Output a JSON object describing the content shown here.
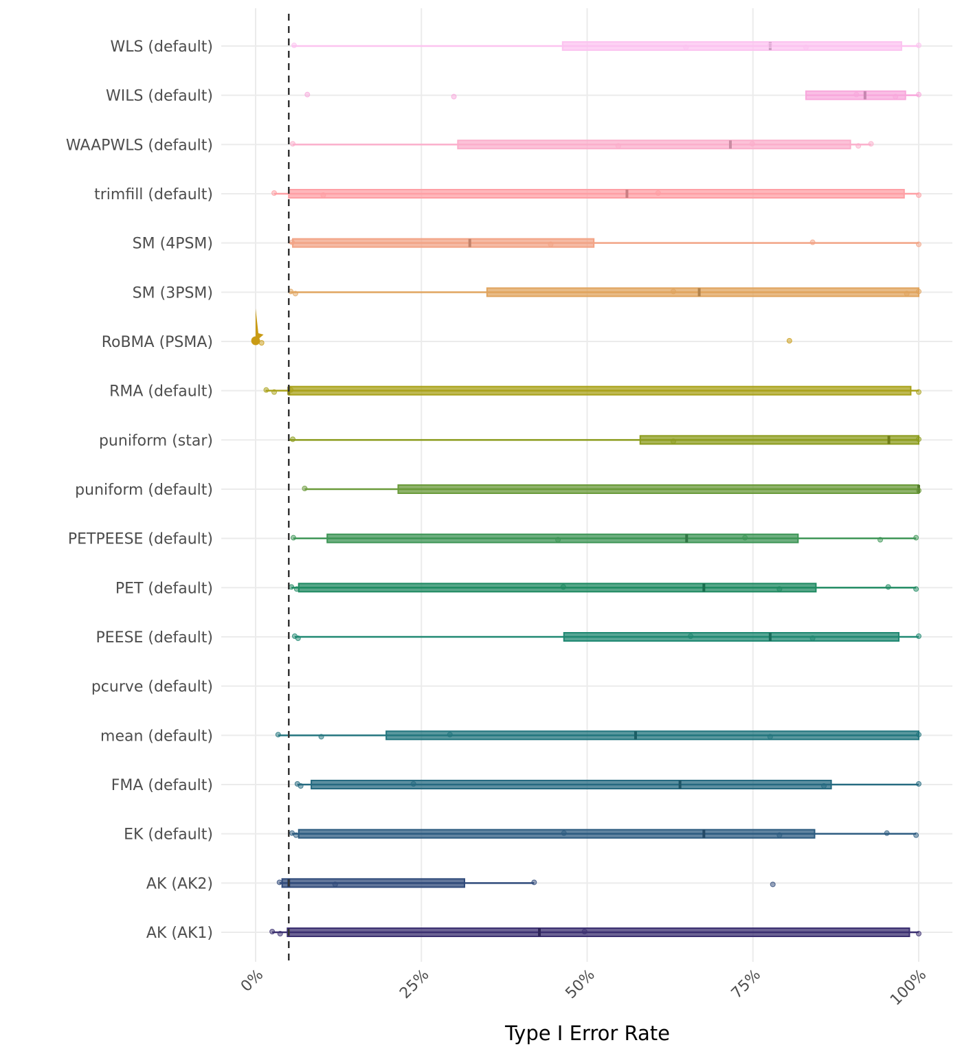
{
  "chart_data": {
    "type": "boxplot-interval",
    "title": "",
    "xlabel": "Type I Error Rate",
    "ylabel": "",
    "xlim": [
      0,
      100
    ],
    "x_ticks": [
      "0%",
      "25%",
      "50%",
      "75%",
      "100%"
    ],
    "x_tick_values": [
      0,
      25,
      50,
      75,
      100
    ],
    "reference_line": {
      "x": 5,
      "style": "dashed",
      "color": "#333333"
    },
    "grid": true,
    "legend": "none",
    "series": [
      {
        "name": "WLS (default)",
        "color": "#fcc3f0",
        "min": 5.5,
        "q1": 46.3,
        "median": 77.6,
        "q3": 97.4,
        "max": 100,
        "points": [
          5.8,
          64.9,
          77.6,
          83,
          100
        ]
      },
      {
        "name": "WILS (default)",
        "color": "#f8a8dc",
        "min": 83,
        "q1": 83,
        "median": 91.9,
        "q3": 98,
        "max": 100,
        "points": [
          7.8,
          29.9,
          90.6,
          96.5,
          100
        ]
      },
      {
        "name": "WAAPWLS (default)",
        "color": "#fbaecb",
        "min": 5.6,
        "q1": 30.5,
        "median": 71.6,
        "q3": 89.7,
        "max": 92.8,
        "points": [
          5.6,
          54.7,
          74.9,
          90.9,
          92.8
        ]
      },
      {
        "name": "trimfill (default)",
        "color": "#fe9fa4",
        "min": 2.8,
        "q1": 5,
        "median": 56,
        "q3": 97.8,
        "max": 100,
        "points": [
          2.8,
          10.2,
          60.7,
          100
        ]
      },
      {
        "name": "SM (4PSM)",
        "color": "#f2a385",
        "min": 5,
        "q1": 5.6,
        "median": 32.3,
        "q3": 51,
        "max": 100,
        "points": [
          5.5,
          44.5,
          84,
          100
        ]
      },
      {
        "name": "SM (3PSM)",
        "color": "#e0a45e",
        "min": 5.2,
        "q1": 34.9,
        "median": 66.9,
        "q3": 100,
        "max": 100,
        "points": [
          5.3,
          6,
          63,
          98.2,
          100
        ]
      },
      {
        "name": "RoBMA (PSMA)",
        "color": "#c99b14",
        "min": null,
        "q1": null,
        "median": null,
        "q3": null,
        "max": null,
        "points": [
          0,
          0.9,
          80.5
        ]
      },
      {
        "name": "RMA (default)",
        "color": "#a9a11a",
        "min": 1.5,
        "q1": 5,
        "median": 5,
        "q3": 98.8,
        "max": 100,
        "points": [
          1.6,
          2.8,
          5.3,
          100
        ]
      },
      {
        "name": "puniform (star)",
        "color": "#8c9c1e",
        "min": 5,
        "q1": 58,
        "median": 95.5,
        "q3": 100,
        "max": 100,
        "points": [
          5.6,
          63,
          100
        ]
      },
      {
        "name": "puniform (default)",
        "color": "#6a9a3a",
        "min": 7.4,
        "q1": 21.5,
        "median": 100,
        "q3": 100,
        "max": 100,
        "points": [
          7.4,
          100
        ]
      },
      {
        "name": "PETPEESE (default)",
        "color": "#3d9556",
        "min": 5.7,
        "q1": 10.8,
        "median": 65,
        "q3": 81.8,
        "max": 99.6,
        "points": [
          5.7,
          45.6,
          73.8,
          94.2,
          99.6
        ]
      },
      {
        "name": "PET (default)",
        "color": "#1f8a62",
        "min": 5.4,
        "q1": 6.5,
        "median": 67.6,
        "q3": 84.5,
        "max": 99.6,
        "points": [
          5.4,
          6.2,
          46.4,
          79,
          95.4,
          99.6
        ]
      },
      {
        "name": "PEESE (default)",
        "color": "#1f8872",
        "min": 5.9,
        "q1": 46.5,
        "median": 77.6,
        "q3": 97,
        "max": 100,
        "points": [
          5.9,
          6.4,
          65.6,
          84,
          100
        ]
      },
      {
        "name": "pcurve (default)",
        "color": "#1f8080",
        "min": null,
        "q1": null,
        "median": null,
        "q3": null,
        "max": null,
        "points": []
      },
      {
        "name": "mean (default)",
        "color": "#23757e",
        "min": 3.4,
        "q1": 19.7,
        "median": 57.3,
        "q3": 100,
        "max": 100,
        "points": [
          3.4,
          9.9,
          29.3,
          77.6,
          100
        ]
      },
      {
        "name": "FMA (default)",
        "color": "#266a80",
        "min": 6.3,
        "q1": 8.4,
        "median": 64,
        "q3": 86.8,
        "max": 100,
        "points": [
          6.3,
          6.8,
          23.8,
          85.7,
          100
        ]
      },
      {
        "name": "EK (default)",
        "color": "#2c5b80",
        "min": 5.5,
        "q1": 6.5,
        "median": 67.6,
        "q3": 84.3,
        "max": 99.6,
        "points": [
          5.5,
          6.1,
          46.5,
          79,
          95.2,
          99.6
        ]
      },
      {
        "name": "AK (AK2)",
        "color": "#2f4a7a",
        "min": 3.6,
        "q1": 4,
        "median": 5,
        "q3": 31.5,
        "max": 42,
        "points": [
          3.6,
          12,
          42,
          78
        ]
      },
      {
        "name": "AK (AK1)",
        "color": "#3b2f70",
        "min": 2.5,
        "q1": 4.8,
        "median": 42.8,
        "q3": 98.6,
        "max": 100,
        "points": [
          2.5,
          3.7,
          49.6,
          100
        ]
      }
    ]
  }
}
